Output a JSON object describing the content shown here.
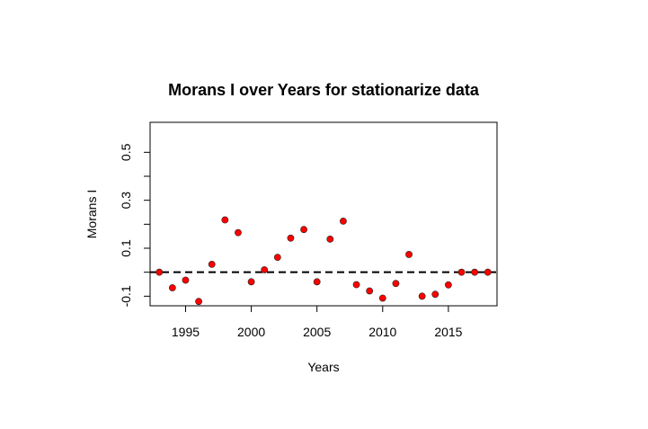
{
  "chart_data": {
    "type": "scatter",
    "title": "Morans I over Years for stationarize data",
    "xlabel": "Years",
    "ylabel": "Morans I",
    "xlim": [
      1992.3,
      2018.7
    ],
    "ylim": [
      -0.14,
      0.625
    ],
    "x_ticks": [
      1995,
      2000,
      2005,
      2010,
      2015
    ],
    "x_tick_labels": [
      "1995",
      "2000",
      "2005",
      "2010",
      "2015"
    ],
    "y_ticks": [
      -0.1,
      0.1,
      0.3,
      0.5
    ],
    "y_tick_labels": [
      "-0.1",
      "0.1",
      "0.3",
      "0.5"
    ],
    "y_minor_ticks": [
      0.0,
      0.2,
      0.4
    ],
    "reference_line": {
      "y": 0,
      "style": "dashed",
      "color": "#000000"
    },
    "point_color": "#ff0000",
    "grid": false,
    "x": [
      1993,
      1994,
      1995,
      1996,
      1997,
      1998,
      1999,
      2000,
      2001,
      2002,
      2003,
      2004,
      2005,
      2006,
      2007,
      2008,
      2009,
      2010,
      2011,
      2012,
      2013,
      2014,
      2015,
      2016,
      2017,
      2018
    ],
    "y": [
      0.0,
      -0.065,
      -0.033,
      -0.122,
      0.033,
      0.218,
      0.165,
      -0.04,
      0.01,
      0.062,
      0.142,
      0.178,
      -0.04,
      0.138,
      0.213,
      -0.052,
      -0.078,
      -0.108,
      -0.047,
      0.074,
      -0.1,
      -0.092,
      -0.053,
      0.0,
      0.0,
      0.0
    ]
  }
}
